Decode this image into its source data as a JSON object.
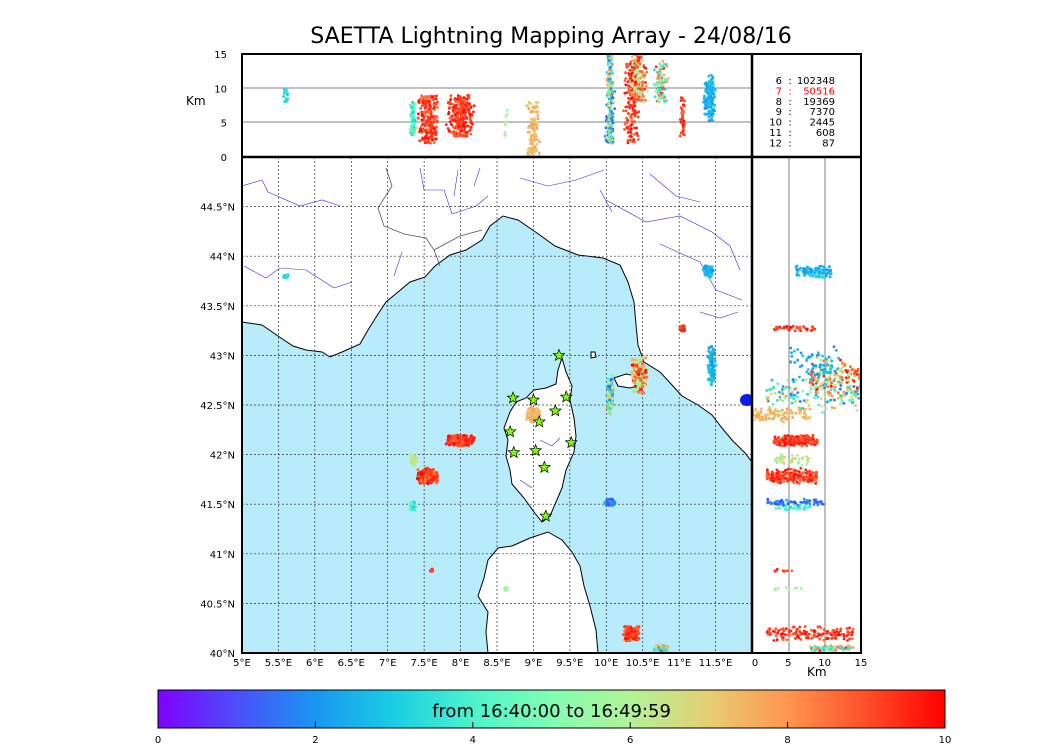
{
  "chart_data": {
    "type": "scatter",
    "title": "SAETTA Lightning Mapping Array - 24/08/16",
    "altitude_panel": {
      "ylabel": "Km",
      "yticks": [
        "15",
        "10",
        "5",
        "0"
      ],
      "ylim": [
        0,
        15
      ],
      "xlim": [
        5,
        12
      ]
    },
    "map_panel": {
      "xlim": [
        5,
        12
      ],
      "ylim": [
        40,
        45
      ],
      "lon_ticks": [
        "5°E",
        "5.5°E",
        "6°E",
        "6.5°E",
        "7°E",
        "7.5°E",
        "8°E",
        "8.5°E",
        "9°E",
        "9.5°E",
        "10°E",
        "10.5°E",
        "11°E",
        "11.5°E"
      ],
      "lat_ticks": [
        "40°N",
        "40.5°N",
        "41°N",
        "41.5°N",
        "42°N",
        "42.5°N",
        "43°N",
        "43.5°N",
        "44°N",
        "44.5°N"
      ],
      "grid": true,
      "sea_color": "#b8ecfb"
    },
    "side_panel": {
      "xlabel": "Km",
      "xticks": [
        "0",
        "5",
        "10",
        "15"
      ],
      "xlim": [
        0,
        15
      ]
    },
    "station_counts": [
      {
        "stations": "6",
        "sep": ":",
        "count": "102348",
        "color": "#000000"
      },
      {
        "stations": "7",
        "sep": ":",
        "count": "50516",
        "color": "#ff0000"
      },
      {
        "stations": "8",
        "sep": ":",
        "count": "19369",
        "color": "#000000"
      },
      {
        "stations": "9",
        "sep": ":",
        "count": "7370",
        "color": "#000000"
      },
      {
        "stations": "10",
        "sep": ":",
        "count": "2445",
        "color": "#000000"
      },
      {
        "stations": "11",
        "sep": ":",
        "count": "608",
        "color": "#000000"
      },
      {
        "stations": "12",
        "sep": ":",
        "count": "87",
        "color": "#000000"
      }
    ],
    "stations": [
      {
        "lon": 9.35,
        "lat": 43.0
      },
      {
        "lon": 8.72,
        "lat": 42.57
      },
      {
        "lon": 9.0,
        "lat": 42.55
      },
      {
        "lon": 9.45,
        "lat": 42.58
      },
      {
        "lon": 9.3,
        "lat": 42.44
      },
      {
        "lon": 9.08,
        "lat": 42.33
      },
      {
        "lon": 8.68,
        "lat": 42.23
      },
      {
        "lon": 9.52,
        "lat": 42.12
      },
      {
        "lon": 8.73,
        "lat": 42.02
      },
      {
        "lon": 9.03,
        "lat": 42.04
      },
      {
        "lon": 9.15,
        "lat": 41.87
      },
      {
        "lon": 9.17,
        "lat": 41.38
      }
    ],
    "clusters": [
      {
        "lon": 8.0,
        "lat": 42.14,
        "lon_spread": 0.2,
        "lat_spread": 0.06,
        "t_min": 8.6,
        "t_max": 10,
        "alt_min": 3,
        "alt_max": 9,
        "n": 260
      },
      {
        "lon": 7.55,
        "lat": 41.78,
        "lon_spread": 0.15,
        "lat_spread": 0.09,
        "t_min": 8.4,
        "t_max": 10,
        "alt_min": 2,
        "alt_max": 9,
        "n": 220
      },
      {
        "lon": 7.35,
        "lat": 41.95,
        "lon_spread": 0.06,
        "lat_spread": 0.06,
        "t_min": 5.4,
        "t_max": 7,
        "alt_min": 3,
        "alt_max": 8,
        "n": 40
      },
      {
        "lon": 7.35,
        "lat": 41.48,
        "lon_spread": 0.05,
        "lat_spread": 0.05,
        "t_min": 3.0,
        "t_max": 4.5,
        "alt_min": 3,
        "alt_max": 8,
        "n": 40
      },
      {
        "lon": 9.0,
        "lat": 42.4,
        "lon_spread": 0.1,
        "lat_spread": 0.08,
        "t_min": 7.0,
        "t_max": 7.8,
        "alt_min": 0,
        "alt_max": 8,
        "n": 110
      },
      {
        "lon": 10.05,
        "lat": 41.52,
        "lon_spread": 0.07,
        "lat_spread": 0.04,
        "t_min": 0.8,
        "t_max": 2.5,
        "alt_min": 2,
        "alt_max": 10,
        "n": 60
      },
      {
        "lon": 11.05,
        "lat": 43.27,
        "lon_spread": 0.04,
        "lat_spread": 0.03,
        "t_min": 8.5,
        "t_max": 10,
        "alt_min": 3,
        "alt_max": 9,
        "n": 40
      },
      {
        "lon": 11.4,
        "lat": 43.85,
        "lon_spread": 0.07,
        "lat_spread": 0.06,
        "t_min": 1.8,
        "t_max": 3.0,
        "alt_min": 6,
        "alt_max": 11,
        "n": 90
      },
      {
        "lon": 10.35,
        "lat": 40.2,
        "lon_spread": 0.12,
        "lat_spread": 0.08,
        "t_min": 8.5,
        "t_max": 10,
        "alt_min": 2,
        "alt_max": 14,
        "n": 150
      },
      {
        "lon": 10.75,
        "lat": 40.05,
        "lon_spread": 0.12,
        "lat_spread": 0.04,
        "t_min": 2.5,
        "t_max": 9.5,
        "alt_min": 8,
        "alt_max": 14,
        "n": 90
      },
      {
        "lon": 5.6,
        "lat": 43.8,
        "lon_spread": 0.04,
        "lat_spread": 0.02,
        "t_min": 3.0,
        "t_max": 3.8,
        "alt_min": 8,
        "alt_max": 10,
        "n": 14
      },
      {
        "lon": 7.6,
        "lat": 40.83,
        "lon_spread": 0.02,
        "lat_spread": 0.02,
        "t_min": 8.6,
        "t_max": 9.5,
        "alt_min": 3,
        "alt_max": 6,
        "n": 8
      },
      {
        "lon": 8.62,
        "lat": 40.65,
        "lon_spread": 0.03,
        "lat_spread": 0.03,
        "t_min": 5.5,
        "t_max": 6.3,
        "alt_min": 3,
        "alt_max": 7,
        "n": 10
      },
      {
        "lon": 10.05,
        "lat": 42.6,
        "lon_spread": 0.05,
        "lat_spread": 0.2,
        "t_min": 1.0,
        "t_max": 8.5,
        "alt_min": 2,
        "alt_max": 15,
        "n": 160
      },
      {
        "lon": 10.45,
        "lat": 42.8,
        "lon_spread": 0.12,
        "lat_spread": 0.2,
        "t_min": 5.0,
        "t_max": 10,
        "alt_min": 8,
        "alt_max": 15,
        "n": 160
      },
      {
        "lon": 11.45,
        "lat": 42.9,
        "lon_spread": 0.06,
        "lat_spread": 0.2,
        "t_min": 1.8,
        "t_max": 3.0,
        "alt_min": 5,
        "alt_max": 12,
        "n": 70
      }
    ],
    "colorbar": {
      "label": "from 16:40:00 to 16:49:59",
      "ticks": [
        "0",
        "2",
        "4",
        "6",
        "8",
        "10"
      ],
      "range": [
        0,
        10
      ]
    }
  }
}
